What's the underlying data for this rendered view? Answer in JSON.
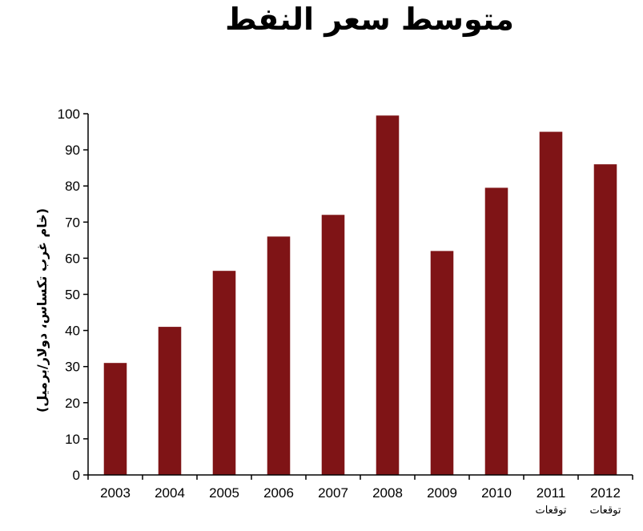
{
  "chart_data": {
    "type": "bar",
    "title": "متوسط سعر النفط",
    "ylabel": "(خام غرب تكساس، دولار/برميل)",
    "xlabel": "",
    "categories": [
      "2003",
      "2004",
      "2005",
      "2006",
      "2007",
      "2008",
      "2009",
      "2010",
      "2011",
      "2012"
    ],
    "category_notes": [
      "",
      "",
      "",
      "",
      "",
      "",
      "",
      "",
      "توقعات",
      "توقعات"
    ],
    "values": [
      31,
      41,
      56.5,
      66,
      72,
      99.5,
      62,
      79.5,
      95,
      86
    ],
    "ylim": [
      0,
      100
    ],
    "yticks": [
      0,
      10,
      20,
      30,
      40,
      50,
      60,
      70,
      80,
      90,
      100
    ],
    "grid": false,
    "legend": "none",
    "bar_color": "#7f1416",
    "axis_color": "#000000"
  }
}
